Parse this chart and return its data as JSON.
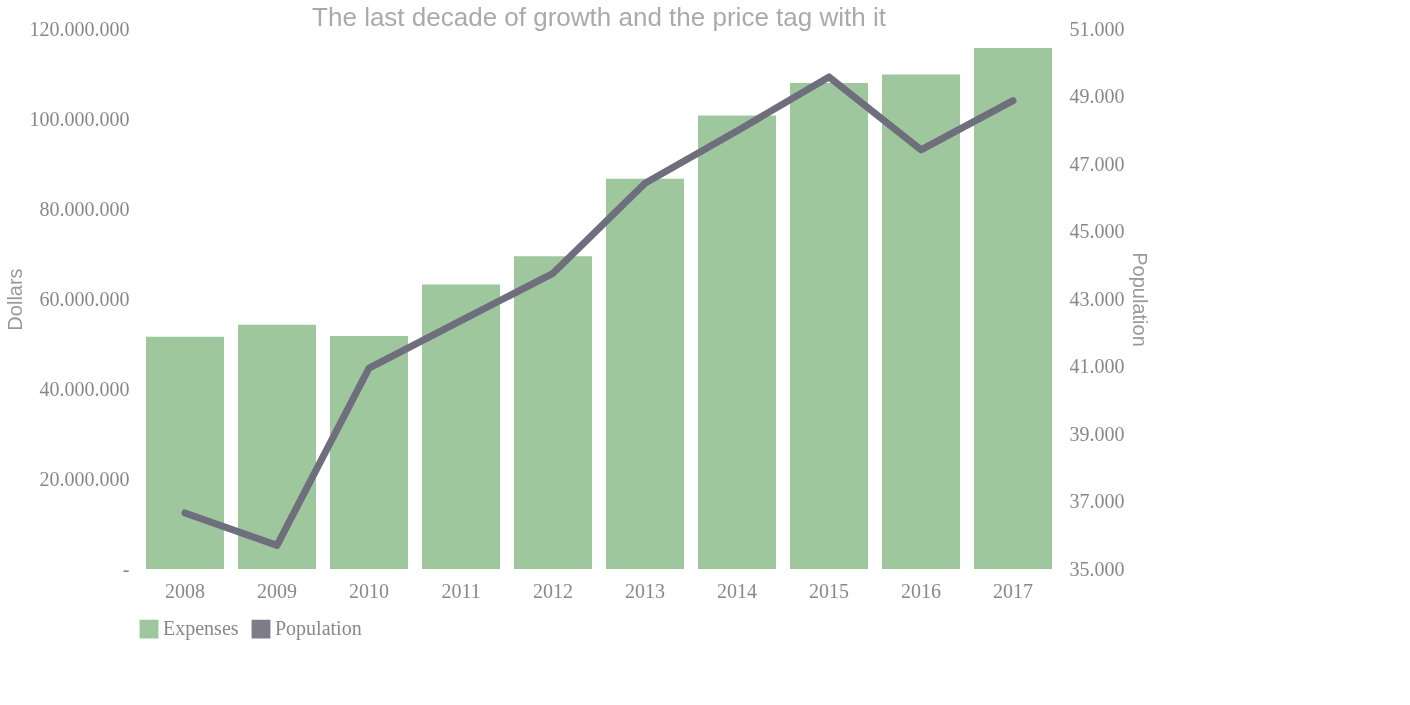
{
  "chart_data": {
    "type": "bar",
    "title": "The last decade of growth and the price tag with it",
    "ylabel": "Dollars",
    "y2label": "Population",
    "categories": [
      "2008",
      "2009",
      "2010",
      "2011",
      "2012",
      "2013",
      "2014",
      "2015",
      "2016",
      "2017"
    ],
    "series": [
      {
        "name": "Expenses",
        "color": "#93c193",
        "values": [
          51600000,
          54300000,
          51800000,
          63200000,
          69500000,
          86700000,
          100800000,
          108000000,
          109900000,
          115800000
        ]
      },
      {
        "name": "Population",
        "type": "line",
        "axis": "y2",
        "color": "#6f6e7c",
        "values": [
          36660,
          35700,
          40950,
          42360,
          43760,
          46430,
          47980,
          49580,
          47420,
          48880
        ]
      }
    ],
    "ylim": [
      0,
      120000000
    ],
    "yticks": [
      {
        "value": 0,
        "label": "-"
      },
      {
        "value": 20000000,
        "label": "20.000.000"
      },
      {
        "value": 40000000,
        "label": "40.000.000"
      },
      {
        "value": 60000000,
        "label": "60.000.000"
      },
      {
        "value": 80000000,
        "label": "80.000.000"
      },
      {
        "value": 100000000,
        "label": "100.000.000"
      },
      {
        "value": 120000000,
        "label": "120.000.000"
      }
    ],
    "y2lim": [
      35000,
      51000
    ],
    "y2ticks": [
      {
        "value": 35000,
        "label": "35.000"
      },
      {
        "value": 37000,
        "label": "37.000"
      },
      {
        "value": 39000,
        "label": "39.000"
      },
      {
        "value": 41000,
        "label": "41.000"
      },
      {
        "value": 43000,
        "label": "43.000"
      },
      {
        "value": 45000,
        "label": "45.000"
      },
      {
        "value": 47000,
        "label": "47.000"
      },
      {
        "value": 49000,
        "label": "49.000"
      },
      {
        "value": 51000,
        "label": "51.000"
      }
    ],
    "grid": false,
    "legend": "bottom"
  }
}
